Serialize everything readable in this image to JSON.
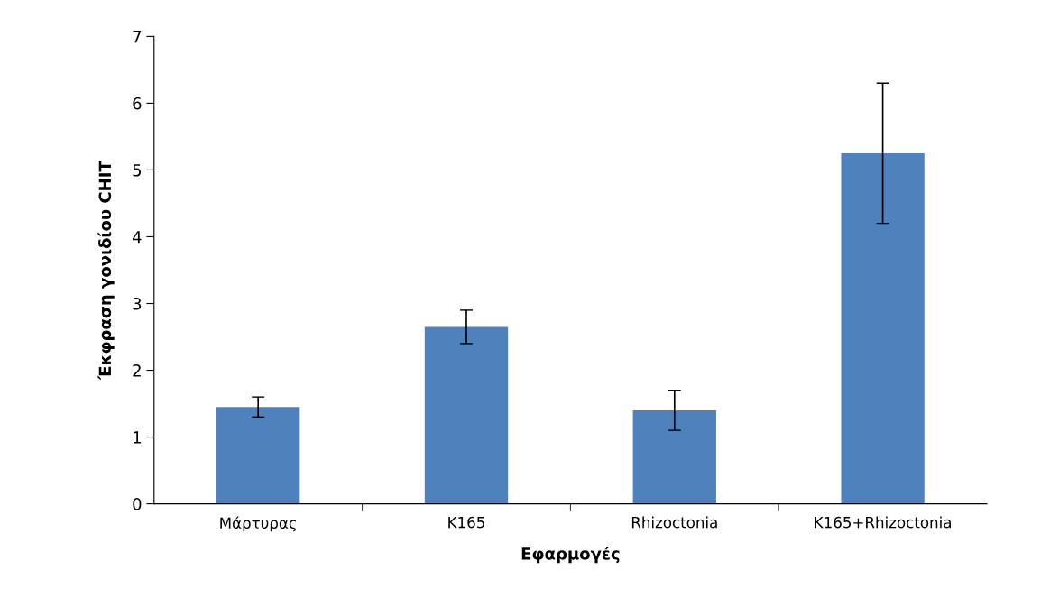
{
  "chart_data": {
    "type": "bar",
    "xlabel": "Εφαρμογές",
    "ylabel": "Έκφραση γονιδίου CHIT",
    "categories": [
      "Μάρτυρας",
      "K165",
      "Rhizoctonia",
      "K165+Rhizoctonia"
    ],
    "values": [
      1.45,
      2.65,
      1.4,
      5.25
    ],
    "errors": [
      0.15,
      0.25,
      0.3,
      1.05
    ],
    "color": "#4f81bd",
    "ylim": [
      0,
      7
    ],
    "yticks": [
      0,
      1,
      2,
      3,
      4,
      5,
      6,
      7
    ],
    "grid": false,
    "legend": false
  }
}
